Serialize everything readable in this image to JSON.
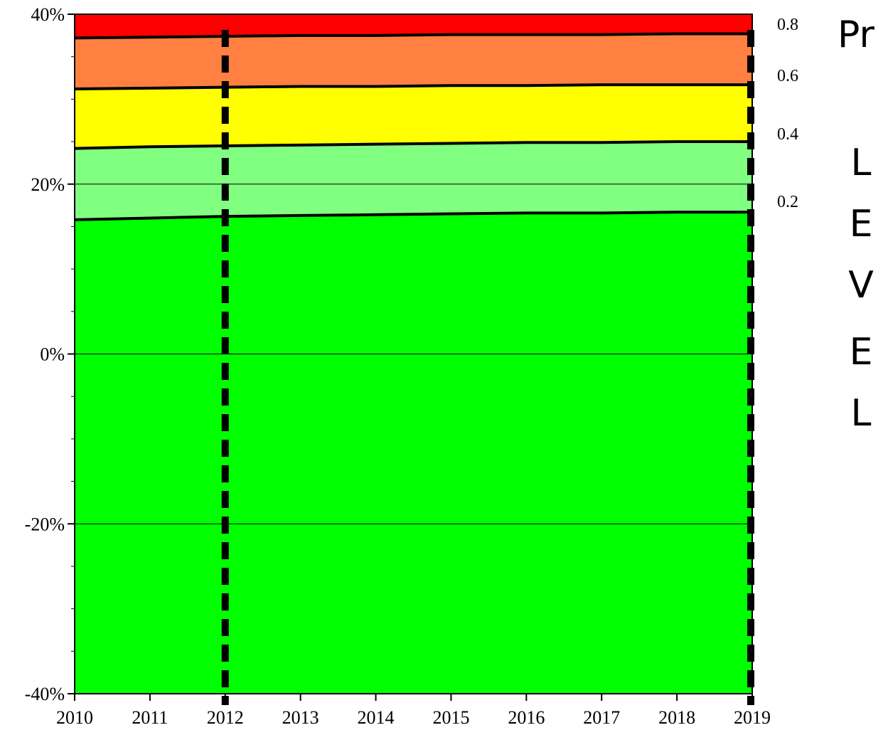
{
  "chart_data": {
    "type": "area",
    "title": "",
    "xlabel": "",
    "ylabel": "",
    "x": [
      2010,
      2011,
      2012,
      2013,
      2014,
      2015,
      2016,
      2017,
      2018,
      2019
    ],
    "xlim": [
      2010,
      2019
    ],
    "ylim": [
      -0.4,
      0.4
    ],
    "x_tick_labels": [
      "2010",
      "2011",
      "2012",
      "2013",
      "2014",
      "2015",
      "2016",
      "2017",
      "2018",
      "2019"
    ],
    "y_tick_labels": [
      "40%",
      "20%",
      "0%",
      "-20%",
      "-40%"
    ],
    "y_tick_values": [
      0.4,
      0.2,
      0.0,
      -0.2,
      -0.4
    ],
    "grid": "horizontal",
    "band_boundaries": [
      {
        "level": 0.2,
        "values": [
          0.158,
          0.16,
          0.162,
          0.163,
          0.164,
          0.165,
          0.166,
          0.166,
          0.167,
          0.167
        ]
      },
      {
        "level": 0.4,
        "values": [
          0.242,
          0.244,
          0.245,
          0.246,
          0.247,
          0.248,
          0.249,
          0.249,
          0.25,
          0.25
        ]
      },
      {
        "level": 0.6,
        "values": [
          0.312,
          0.313,
          0.314,
          0.315,
          0.315,
          0.316,
          0.316,
          0.317,
          0.317,
          0.317
        ]
      },
      {
        "level": 0.8,
        "values": [
          0.372,
          0.373,
          0.374,
          0.375,
          0.375,
          0.376,
          0.376,
          0.376,
          0.377,
          0.377
        ]
      }
    ],
    "band_colors": [
      "#00ff00",
      "#80ff80",
      "#ffff00",
      "#ff8040",
      "#ff0000"
    ],
    "vertical_markers": [
      2012,
      2019
    ],
    "right_labels": {
      "title_fragment": "Pr",
      "levels": [
        "0.8",
        "0.6",
        "0.4",
        "0.2"
      ],
      "vertical_text": [
        "L",
        "E",
        "V",
        "E",
        "L"
      ]
    }
  }
}
